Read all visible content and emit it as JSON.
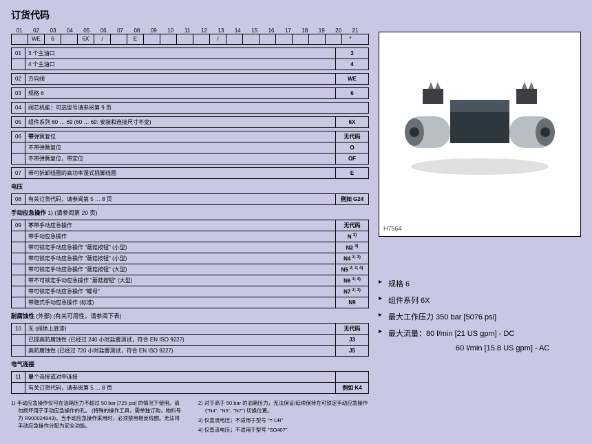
{
  "title": "订货代码",
  "code_index": [
    "01",
    "02",
    "03",
    "04",
    "05",
    "06",
    "07",
    "08",
    "09",
    "10",
    "11",
    "12",
    "13",
    "14",
    "15",
    "16",
    "17",
    "18",
    "19",
    "20",
    "21"
  ],
  "code_cells": [
    "",
    "WE",
    "6",
    "",
    "6X",
    "/",
    "",
    "E",
    "",
    "",
    "",
    "",
    "/",
    "",
    "",
    "",
    "",
    "",
    "",
    "",
    "*"
  ],
  "group01": {
    "num": "01",
    "rows": [
      {
        "label": "3 个主油口",
        "val": "3"
      },
      {
        "label": "4 个主油口",
        "val": "4"
      }
    ]
  },
  "group02": {
    "num": "02",
    "label": "方向阀",
    "val": "WE"
  },
  "group03": {
    "num": "03",
    "label": "规格 6",
    "val": "6"
  },
  "group04": {
    "num": "04",
    "label": "阀芯机能：可选型号请参阅第 9 页"
  },
  "group05": {
    "num": "05",
    "label": "组件系列 60 … 69  (60 … 69:  安装和连接尺寸不变)",
    "val": "6X"
  },
  "group06": {
    "num": "06",
    "rows": [
      {
        "label": "带弹簧复位",
        "val": "无代码",
        "bold_first": true
      },
      {
        "label": "不带弹簧复位",
        "val": "O"
      },
      {
        "label": "不带弹簧复位，带定位",
        "val": "OF"
      }
    ]
  },
  "group07": {
    "num": "07",
    "label": "带可拆卸线圈的高功率湿式插脚线圈",
    "val": "E"
  },
  "sect_voltage": "电压",
  "group08": {
    "num": "08",
    "label": "有关订货代码，请参阅第 5 … 8 页",
    "val": "例如 G24"
  },
  "sect_manual": "手动应急操作",
  "sect_manual_note": " 1)  (请参阅第 20 页)",
  "group09": {
    "num": "09",
    "rows": [
      {
        "label": "不带手动应急操作",
        "val": "无代码",
        "bold_first": true
      },
      {
        "label": "带手动应急操作",
        "val": "N",
        "sup": "3)"
      },
      {
        "label": "带可锁定手动应急操作 \"蘑菇按钮\"  (小型)",
        "val": "N2",
        "sup": "3)"
      },
      {
        "label": "带可锁定手动应急操作 \"蘑菇按钮\"  (小型)",
        "val": "N4",
        "sup": "2; 3)"
      },
      {
        "label": "带可锁定手动应急操作 \"蘑菇按钮\"  (大型)",
        "val": "N5",
        "sup": "2; 3; 4)"
      },
      {
        "label": "带不可锁定手动应急操作 \"蘑菇按钮\"  (大型)",
        "val": "N6",
        "sup": "3; 4)"
      },
      {
        "label": "带可锁定手动应急操作 \"螺母\"",
        "val": "N7",
        "sup": "2; 3)"
      },
      {
        "label": "带隐式手动应急操作  (标准)",
        "val": "N9"
      }
    ]
  },
  "sect_corr": "耐腐蚀性",
  "sect_corr_note": " (外部)  (有关可用性，请参阅下表)",
  "group10": {
    "num": "10",
    "rows": [
      {
        "label": "无  (阀体上底漆)",
        "val": "无代码"
      },
      {
        "label": "已提高防腐蚀性  (已经过 240 小时盐雾测试，符合 EN ISO 9227)",
        "val": "J3"
      },
      {
        "label": "高防腐蚀性  (已经过 720 小时盐雾测试，符合 EN ISO 9227)",
        "val": "J5"
      }
    ]
  },
  "sect_elec": "电气连接",
  "group11": {
    "num": "11",
    "rows": [
      {
        "label": "单个连接或对中连接",
        "val": "",
        "bold_first": true
      },
      {
        "label": "有关订货代码，请参阅第 5 … 8 页",
        "val": "例如 K4"
      }
    ]
  },
  "footnotes_left": [
    "1)  手动应急操作仅可在油箱压力不超过 50 bar [725 psi] 的情况下使用。请勿损坏用于手动应急操作的孔。 (特殊的操作工具，需单独订购，物料号为 R900024943)。当手动应急操作采用时，必须禁用相反线圈。无法将手动应急操作分配为安全功能。"
  ],
  "footnotes_right": [
    "2)  对于高于 50 bar 的油箱压力，无法保证/延续保持在可锁定手动应急操作 (\"N4\", \"N5\", \"N7\") 切换位置。",
    "3)  仅直流电压；不适用于型号 \"= UR\"",
    "4)  仅直流电压；不适用于型号 \"SO407\""
  ],
  "photo_tag": "H7564",
  "bullets": [
    "规格 6",
    "组件系列 6X",
    "最大工作压力 350 bar [5076 psi]",
    "最大流量：80 l/min [21 US gpm] - DC",
    "60 l/min [15.8 US gpm] - AC"
  ]
}
